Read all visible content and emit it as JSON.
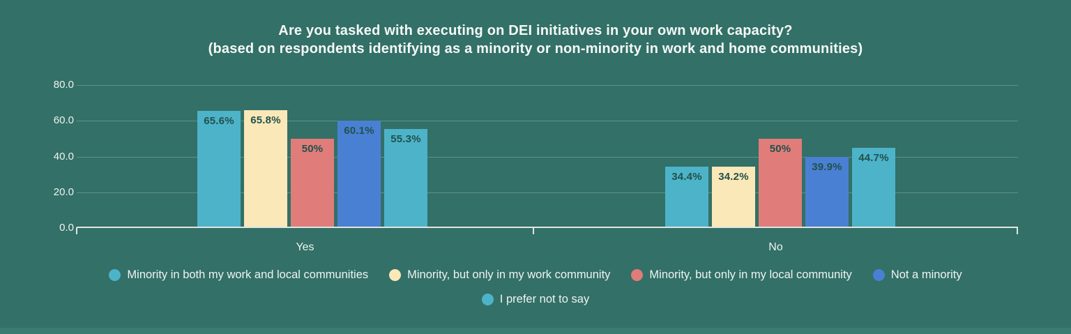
{
  "title": {
    "line1": "Are you tasked with executing on DEI initiatives in your own work capacity?",
    "line2": "(based on respondents identifying as a minority or non-minority in work and home communities)"
  },
  "chart_data": {
    "type": "bar",
    "categories": [
      "Yes",
      "No"
    ],
    "series": [
      {
        "name": "Minority in both my work and local communities",
        "color": "#4db3c9",
        "values": [
          65.6,
          34.4
        ],
        "labels": [
          "65.6%",
          "34.4%"
        ]
      },
      {
        "name": "Minority, but only in my work community",
        "color": "#fae8b8",
        "values": [
          65.8,
          34.2
        ],
        "labels": [
          "65.8%",
          "34.2%"
        ]
      },
      {
        "name": "Minority, but only in my local community",
        "color": "#e07d7a",
        "values": [
          50,
          50
        ],
        "labels": [
          "50%",
          "50%"
        ]
      },
      {
        "name": "Not a minority",
        "color": "#4a80d3",
        "values": [
          60.1,
          39.9
        ],
        "labels": [
          "60.1%",
          "39.9%"
        ]
      },
      {
        "name": "I prefer not to say",
        "color": "#4db3c9",
        "values": [
          55.3,
          44.7
        ],
        "labels": [
          "55.3%",
          "44.7%"
        ]
      }
    ],
    "yticks": [
      "0.0",
      "20.0",
      "40.0",
      "60.0",
      "80.0"
    ],
    "ylim": [
      0,
      80
    ],
    "grid": true,
    "legend_position": "bottom"
  },
  "colors": {
    "background": "#337067",
    "title_text": "#f5f9f7",
    "axis_text": "#eef4f2",
    "value_label": "#21514b",
    "axis_line": "#dfe6e3",
    "gridline": "rgba(230,240,236,0.25)",
    "bottom_strip": "#3b7b71"
  }
}
